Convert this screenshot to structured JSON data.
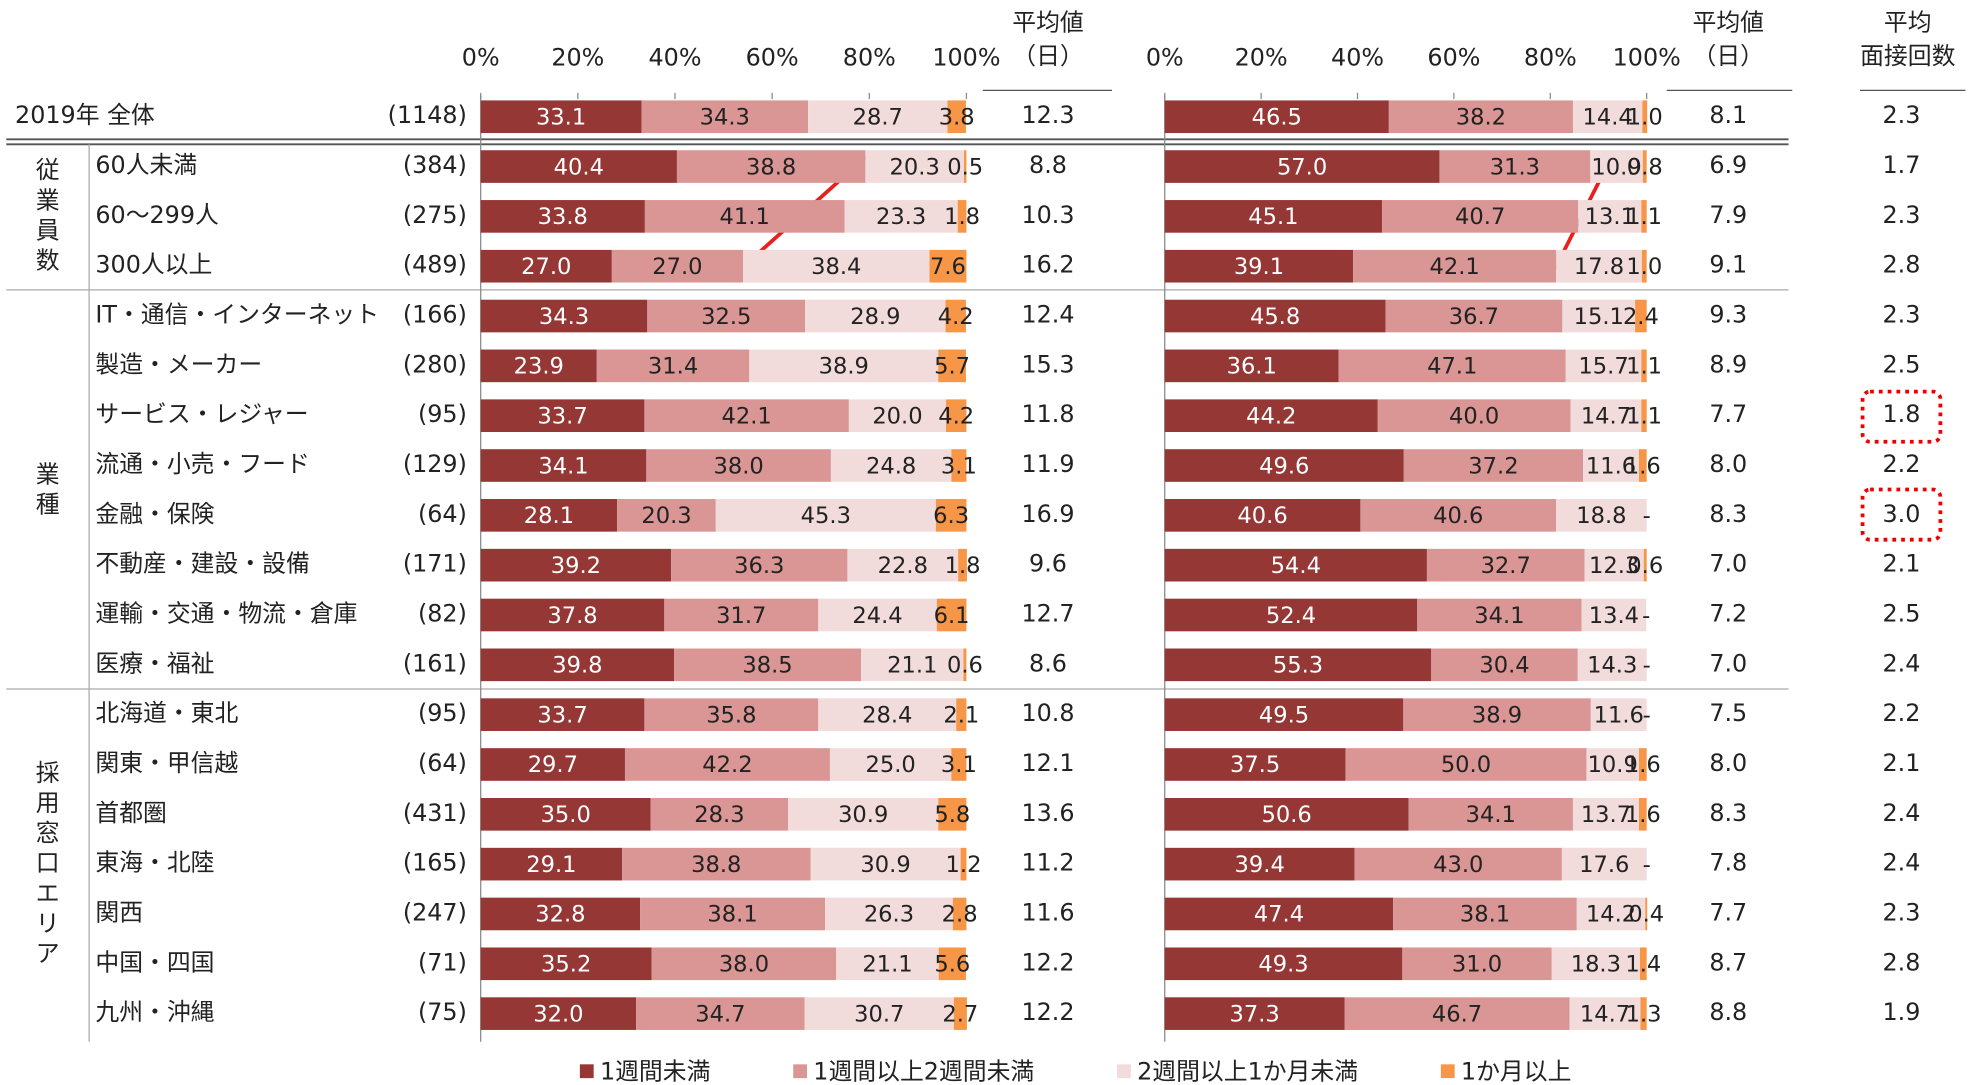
{
  "chart_data": [
    {
      "type": "stacked-barh",
      "categories": [
        "2019年 全体",
        "60人未満",
        "60～299人",
        "300人以上",
        "IT・通信・インターネット",
        "製造・メーカー",
        "サービス・レジャー",
        "流通・小売・フード",
        "金融・保険",
        "不動産・建設・設備",
        "運輸・交通・物流・倉庫",
        "医療・福祉",
        "北海道・東北",
        "関東・甲信越",
        "首都圏",
        "東海・北陸",
        "関西",
        "中国・四国",
        "九州・沖縄"
      ],
      "sample_sizes": [
        "(1148)",
        "(384)",
        "(275)",
        "(489)",
        "(166)",
        "(280)",
        "(95)",
        "(129)",
        "(64)",
        "(171)",
        "(82)",
        "(161)",
        "(95)",
        "(64)",
        "(431)",
        "(165)",
        "(247)",
        "(71)",
        "(75)"
      ],
      "xlim": [
        0,
        100
      ],
      "xticks": [
        {
          "value": 0,
          "label": "0%"
        },
        {
          "value": 20,
          "label": "20%"
        },
        {
          "value": 40,
          "label": "40%"
        },
        {
          "value": 60,
          "label": "60%"
        },
        {
          "value": 80,
          "label": "80%"
        },
        {
          "value": 100,
          "label": "100%"
        }
      ],
      "series": [
        {
          "name": "1週間未満",
          "color": "#953735",
          "values": [
            33.1,
            40.4,
            33.8,
            27.0,
            34.3,
            23.9,
            33.7,
            34.1,
            28.1,
            39.2,
            37.8,
            39.8,
            33.7,
            29.7,
            35.0,
            29.1,
            32.8,
            35.2,
            32.0
          ],
          "value_labels": [
            "33.1",
            "40.4",
            "33.8",
            "27.0",
            "34.3",
            "23.9",
            "33.7",
            "34.1",
            "28.1",
            "39.2",
            "37.8",
            "39.8",
            "33.7",
            "29.7",
            "35.0",
            "29.1",
            "32.8",
            "35.2",
            "32.0"
          ]
        },
        {
          "name": "1週間以上2週間未満",
          "color": "#d99694",
          "values": [
            34.3,
            38.8,
            41.1,
            27.0,
            32.5,
            31.4,
            42.1,
            38.0,
            20.3,
            36.3,
            31.7,
            38.5,
            35.8,
            42.2,
            28.3,
            38.8,
            38.1,
            38.0,
            34.7
          ],
          "value_labels": [
            "34.3",
            "38.8",
            "41.1",
            "27.0",
            "32.5",
            "31.4",
            "42.1",
            "38.0",
            "20.3",
            "36.3",
            "31.7",
            "38.5",
            "35.8",
            "42.2",
            "28.3",
            "38.8",
            "38.1",
            "38.0",
            "34.7"
          ]
        },
        {
          "name": "2週間以上1か月未満",
          "color": "#f2dcdb",
          "values": [
            28.7,
            20.3,
            23.3,
            38.4,
            28.9,
            38.9,
            20.0,
            24.8,
            45.3,
            22.8,
            24.4,
            21.1,
            28.4,
            25.0,
            30.9,
            30.9,
            26.3,
            21.1,
            30.7
          ],
          "value_labels": [
            "28.7",
            "20.3",
            "23.3",
            "38.4",
            "28.9",
            "38.9",
            "20.0",
            "24.8",
            "45.3",
            "22.8",
            "24.4",
            "21.1",
            "28.4",
            "25.0",
            "30.9",
            "30.9",
            "26.3",
            "21.1",
            "30.7"
          ]
        },
        {
          "name": "1か月以上",
          "color": "#f79646",
          "values": [
            3.8,
            0.5,
            1.8,
            7.6,
            4.2,
            5.7,
            4.2,
            3.1,
            6.3,
            1.8,
            6.1,
            0.6,
            2.1,
            3.1,
            5.8,
            1.2,
            2.8,
            5.6,
            2.7
          ],
          "value_labels": [
            "3.8",
            "0.5",
            "1.8",
            "7.6",
            "4.2",
            "5.7",
            "4.2",
            "3.1",
            "6.3",
            "1.8",
            "6.1",
            "0.6",
            "2.1",
            "3.1",
            "5.8",
            "1.2",
            "2.8",
            "5.6",
            "2.7"
          ]
        }
      ],
      "averages": {
        "header": [
          "平均値",
          "（日）"
        ],
        "values": [
          "12.3",
          "8.8",
          "10.3",
          "16.2",
          "12.4",
          "15.3",
          "11.8",
          "11.9",
          "16.9",
          "9.6",
          "12.7",
          "8.6",
          "10.8",
          "12.1",
          "13.6",
          "11.2",
          "11.6",
          "12.2",
          "12.2"
        ]
      }
    },
    {
      "type": "stacked-barh",
      "xlim": [
        0,
        100
      ],
      "xticks": [
        {
          "value": 0,
          "label": "0%"
        },
        {
          "value": 20,
          "label": "20%"
        },
        {
          "value": 40,
          "label": "40%"
        },
        {
          "value": 60,
          "label": "60%"
        },
        {
          "value": 80,
          "label": "80%"
        },
        {
          "value": 100,
          "label": "100%"
        }
      ],
      "series": [
        {
          "color": "#953735",
          "values": [
            46.5,
            57.0,
            45.1,
            39.1,
            45.8,
            36.1,
            44.2,
            49.6,
            40.6,
            54.4,
            52.4,
            55.3,
            49.5,
            37.5,
            50.6,
            39.4,
            47.4,
            49.3,
            37.3
          ],
          "value_labels": [
            "46.5",
            "57.0",
            "45.1",
            "39.1",
            "45.8",
            "36.1",
            "44.2",
            "49.6",
            "40.6",
            "54.4",
            "52.4",
            "55.3",
            "49.5",
            "37.5",
            "50.6",
            "39.4",
            "47.4",
            "49.3",
            "37.3"
          ]
        },
        {
          "color": "#d99694",
          "values": [
            38.2,
            31.3,
            40.7,
            42.1,
            36.7,
            47.1,
            40.0,
            37.2,
            40.6,
            32.7,
            34.1,
            30.4,
            38.9,
            50.0,
            34.1,
            43.0,
            38.1,
            31.0,
            46.7
          ],
          "value_labels": [
            "38.2",
            "31.3",
            "40.7",
            "42.1",
            "36.7",
            "47.1",
            "40.0",
            "37.2",
            "40.6",
            "32.7",
            "34.1",
            "30.4",
            "38.9",
            "50.0",
            "34.1",
            "43.0",
            "38.1",
            "31.0",
            "46.7"
          ]
        },
        {
          "color": "#f2dcdb",
          "values": [
            14.4,
            10.9,
            13.1,
            17.8,
            15.1,
            15.7,
            14.7,
            11.6,
            18.8,
            12.3,
            13.4,
            14.3,
            11.6,
            10.9,
            13.7,
            17.6,
            14.2,
            18.3,
            14.7
          ],
          "value_labels": [
            "14.4",
            "10.9",
            "13.1",
            "17.8",
            "15.1",
            "15.7",
            "14.7",
            "11.6",
            "18.8",
            "12.3",
            "13.4",
            "14.3",
            "11.6",
            "10.9",
            "13.7",
            "17.6",
            "14.2",
            "18.3",
            "14.7"
          ]
        },
        {
          "color": "#f79646",
          "values": [
            1.0,
            0.8,
            1.1,
            1.0,
            2.4,
            1.1,
            1.1,
            1.6,
            0,
            0.6,
            0,
            0,
            0,
            1.6,
            1.6,
            0,
            0.4,
            1.4,
            1.3
          ],
          "value_labels": [
            "1.0",
            "0.8",
            "1.1",
            "1.0",
            "2.4",
            "1.1",
            "1.1",
            "1.6",
            "-",
            "0.6",
            "-",
            "-",
            "-",
            "1.6",
            "1.6",
            "-",
            "0.4",
            "1.4",
            "1.3"
          ]
        }
      ],
      "averages": {
        "header": [
          "平均値",
          "（日）"
        ],
        "values": [
          "8.1",
          "6.9",
          "7.9",
          "9.1",
          "9.3",
          "8.9",
          "7.7",
          "8.0",
          "8.3",
          "7.0",
          "7.2",
          "7.0",
          "7.5",
          "8.0",
          "8.3",
          "7.8",
          "7.7",
          "8.7",
          "8.8"
        ]
      },
      "interviews": {
        "header": [
          "平均",
          "面接回数"
        ],
        "values": [
          "2.3",
          "1.7",
          "2.3",
          "2.8",
          "2.3",
          "2.5",
          "1.8",
          "2.2",
          "3.0",
          "2.1",
          "2.5",
          "2.4",
          "2.2",
          "2.1",
          "2.4",
          "2.4",
          "2.3",
          "2.8",
          "1.9"
        ]
      }
    }
  ],
  "groups": [
    "従業員数",
    "業種",
    "採用窓口エリア"
  ]
}
